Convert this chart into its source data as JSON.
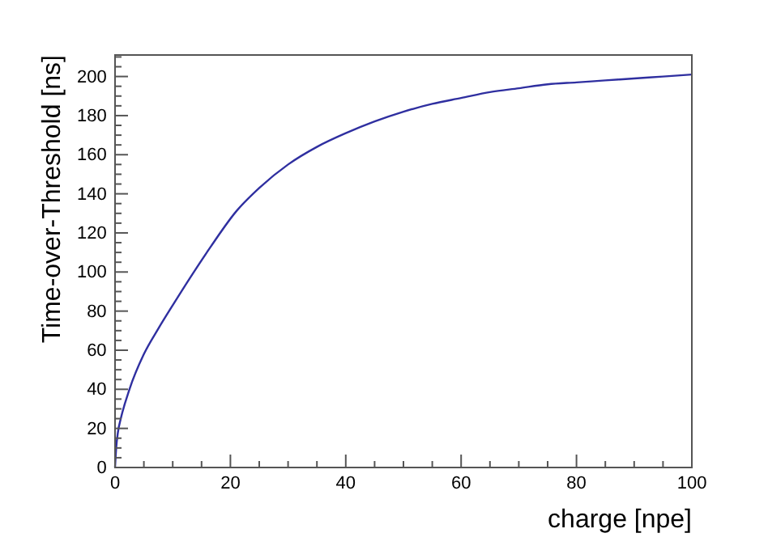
{
  "chart_data": {
    "type": "line",
    "xlabel": "charge [npe]",
    "ylabel": "Time-over-Threshold [ns]",
    "xlim": [
      0,
      100
    ],
    "ylim": [
      0,
      211
    ],
    "xticks": [
      0,
      {
        "value": 5,
        "label": null
      },
      {
        "value": 10,
        "label": null
      },
      {
        "value": 15,
        "label": null
      },
      20,
      {
        "value": 25,
        "label": null
      },
      {
        "value": 30,
        "label": null
      },
      {
        "value": 35,
        "label": null
      },
      40,
      {
        "value": 45,
        "label": null
      },
      {
        "value": 50,
        "label": null
      },
      {
        "value": 55,
        "label": null
      },
      60,
      {
        "value": 65,
        "label": null
      },
      {
        "value": 70,
        "label": null
      },
      {
        "value": 75,
        "label": null
      },
      80,
      {
        "value": 85,
        "label": null
      },
      {
        "value": 90,
        "label": null
      },
      {
        "value": 95,
        "label": null
      },
      100
    ],
    "yticks": [
      0,
      {
        "value": 5,
        "label": null
      },
      {
        "value": 10,
        "label": null
      },
      {
        "value": 15,
        "label": null
      },
      20,
      {
        "value": 25,
        "label": null
      },
      {
        "value": 30,
        "label": null
      },
      {
        "value": 35,
        "label": null
      },
      40,
      {
        "value": 45,
        "label": null
      },
      {
        "value": 50,
        "label": null
      },
      {
        "value": 55,
        "label": null
      },
      60,
      {
        "value": 65,
        "label": null
      },
      {
        "value": 70,
        "label": null
      },
      {
        "value": 75,
        "label": null
      },
      80,
      {
        "value": 85,
        "label": null
      },
      {
        "value": 90,
        "label": null
      },
      {
        "value": 95,
        "label": null
      },
      100,
      {
        "value": 105,
        "label": null
      },
      {
        "value": 110,
        "label": null
      },
      {
        "value": 115,
        "label": null
      },
      120,
      {
        "value": 125,
        "label": null
      },
      {
        "value": 130,
        "label": null
      },
      {
        "value": 135,
        "label": null
      },
      140,
      {
        "value": 145,
        "label": null
      },
      {
        "value": 150,
        "label": null
      },
      {
        "value": 155,
        "label": null
      },
      160,
      {
        "value": 165,
        "label": null
      },
      {
        "value": 170,
        "label": null
      },
      {
        "value": 175,
        "label": null
      },
      180,
      {
        "value": 185,
        "label": null
      },
      {
        "value": 190,
        "label": null
      },
      {
        "value": 195,
        "label": null
      },
      200,
      {
        "value": 205,
        "label": null
      },
      {
        "value": 210,
        "label": null
      }
    ],
    "x": [
      0,
      0.2,
      0.5,
      1,
      2.5,
      5,
      7.5,
      10,
      13,
      16.6,
      21,
      25,
      30,
      35,
      40,
      45,
      50,
      55,
      60,
      65,
      70,
      75,
      80,
      85,
      90,
      95,
      100
    ],
    "series": [
      {
        "color": "#2f2fa0",
        "values": [
          0,
          10,
          18,
          25,
          40,
          58,
          71,
          83,
          97,
          113,
          131,
          143,
          155,
          164,
          171,
          177,
          182,
          186,
          189,
          192,
          194,
          196,
          197,
          198,
          199,
          200,
          201
        ]
      }
    ],
    "grid": false,
    "marker": "none",
    "line_style": "solid"
  }
}
